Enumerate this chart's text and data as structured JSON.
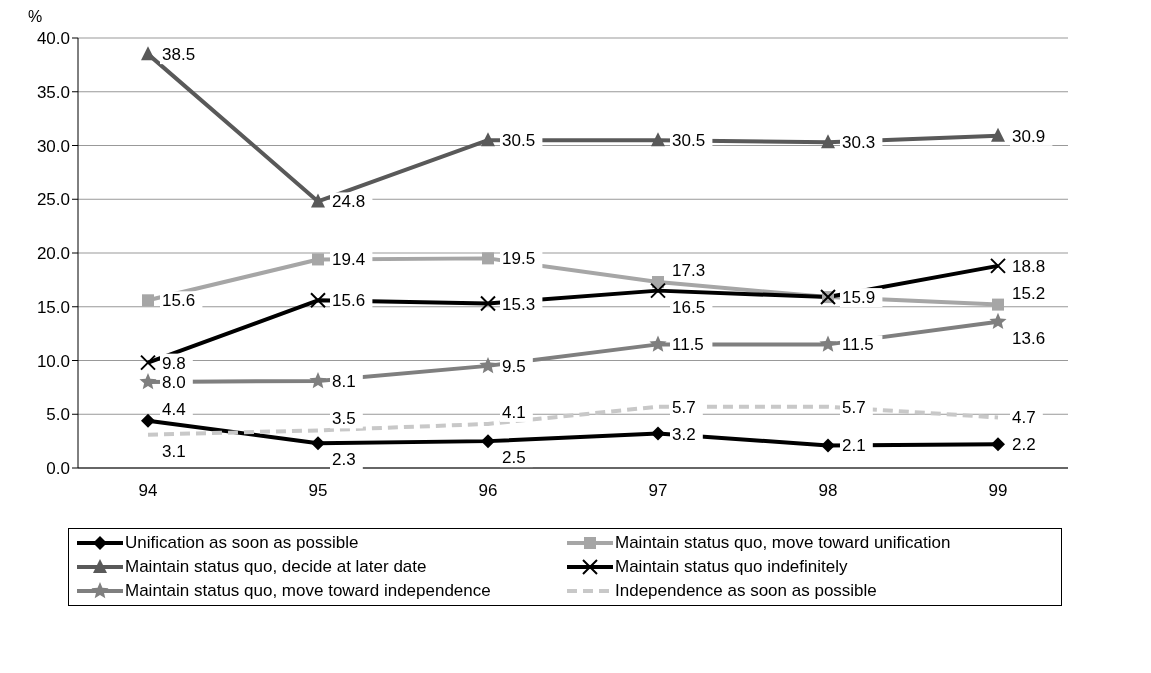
{
  "chart_data": {
    "type": "line",
    "ylabel": "%",
    "categories": [
      "94",
      "95",
      "96",
      "97",
      "98",
      "99"
    ],
    "ylim": [
      0,
      40
    ],
    "yticks": [
      {
        "value": 0,
        "label": "0.0"
      },
      {
        "value": 5,
        "label": "5.0"
      },
      {
        "value": 10,
        "label": "10.0"
      },
      {
        "value": 15,
        "label": "15.0"
      },
      {
        "value": 20,
        "label": "20.0"
      },
      {
        "value": 25,
        "label": "25.0"
      },
      {
        "value": 30,
        "label": "30.0"
      },
      {
        "value": 35,
        "label": "35.0"
      },
      {
        "value": 40,
        "label": "40.0"
      }
    ],
    "grid": "y",
    "legend": "bottom",
    "series": [
      {
        "name": "Unification as soon as possible",
        "color": "#000000",
        "marker": "diamond",
        "values": [
          4.4,
          2.3,
          2.5,
          3.2,
          2.1,
          2.2
        ],
        "value_labels": [
          "4.4",
          "2.3",
          "2.5",
          "3.2",
          "2.1",
          "2.2"
        ]
      },
      {
        "name": "Maintain status quo, move toward unification",
        "color": "#a6a6a6",
        "marker": "square",
        "values": [
          15.6,
          19.4,
          19.5,
          17.3,
          15.9,
          15.2
        ],
        "value_labels": [
          "15.6",
          "19.4",
          "19.5",
          "17.3",
          null,
          "15.2"
        ]
      },
      {
        "name": "Maintain status quo, decide at later date",
        "color": "#595959",
        "marker": "triangle",
        "values": [
          38.5,
          24.8,
          30.5,
          30.5,
          30.3,
          30.9
        ],
        "value_labels": [
          "38.5",
          "24.8",
          "30.5",
          "30.5",
          "30.3",
          "30.9"
        ]
      },
      {
        "name": "Maintain status quo indefinitely",
        "color": "#000000",
        "marker": "cross",
        "values": [
          9.8,
          15.6,
          15.3,
          16.5,
          15.9,
          18.8
        ],
        "value_labels": [
          "9.8",
          "15.6",
          "15.3",
          "16.5",
          "15.9",
          "18.8"
        ]
      },
      {
        "name": "Maintain status quo, move toward independence",
        "color": "#7f7f7f",
        "marker": "star",
        "values": [
          8.0,
          8.1,
          9.5,
          11.5,
          11.5,
          13.6
        ],
        "value_labels": [
          "8.0",
          "8.1",
          "9.5",
          "11.5",
          "11.5",
          "13.6"
        ]
      },
      {
        "name": "Independence as soon as possible",
        "color": "#c8c8c8",
        "marker": "none",
        "line_style": "dashed",
        "values": [
          3.1,
          3.5,
          4.1,
          5.7,
          5.7,
          4.7
        ],
        "value_labels": [
          "3.1",
          "3.5",
          "4.1",
          "5.7",
          "5.7",
          "4.7"
        ]
      }
    ]
  }
}
